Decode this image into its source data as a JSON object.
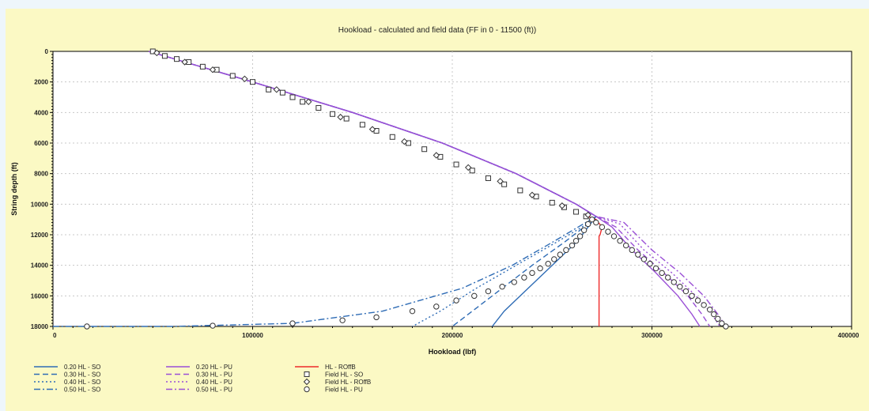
{
  "chart_data": {
    "type": "line",
    "title": "Hookload - calculated and field data (FF in 0 - 11500 (ft))",
    "xlabel": "Hookload (lbf)",
    "ylabel": "String depth (ft)",
    "xlim": [
      0,
      400000
    ],
    "ylim": [
      18000,
      0
    ],
    "xticks": [
      "0",
      "100000",
      "200000",
      "300000",
      "400000"
    ],
    "yticks": [
      "0",
      "2000",
      "4000",
      "6000",
      "8000",
      "10000",
      "12000",
      "14000",
      "16000",
      "18000"
    ],
    "grid": true,
    "legend_position": "bottom",
    "series": [
      {
        "name": "0.20 HL - SO",
        "color": "#2f6cb5",
        "dash": "solid",
        "points": [
          [
            48000,
            0
          ],
          [
            100000,
            2000
          ],
          [
            150000,
            4000
          ],
          [
            195000,
            6000
          ],
          [
            232000,
            8000
          ],
          [
            262000,
            10000
          ],
          [
            272000,
            10800
          ],
          [
            268000,
            11500
          ],
          [
            262000,
            12500
          ],
          [
            250000,
            14000
          ],
          [
            238000,
            15500
          ],
          [
            226000,
            17000
          ],
          [
            220000,
            18000
          ]
        ]
      },
      {
        "name": "0.30 HL - SO",
        "color": "#2f6cb5",
        "dash": "dash",
        "points": [
          [
            48000,
            0
          ],
          [
            100000,
            2000
          ],
          [
            150000,
            4000
          ],
          [
            195000,
            6000
          ],
          [
            232000,
            8000
          ],
          [
            262000,
            10000
          ],
          [
            272000,
            10800
          ],
          [
            266000,
            11500
          ],
          [
            256000,
            12500
          ],
          [
            240000,
            14000
          ],
          [
            225000,
            15500
          ],
          [
            210000,
            17000
          ],
          [
            200000,
            18000
          ]
        ]
      },
      {
        "name": "0.40 HL - SO",
        "color": "#2f6cb5",
        "dash": "dot",
        "points": [
          [
            48000,
            0
          ],
          [
            100000,
            2000
          ],
          [
            150000,
            4000
          ],
          [
            195000,
            6000
          ],
          [
            232000,
            8000
          ],
          [
            262000,
            10000
          ],
          [
            272000,
            10800
          ],
          [
            265000,
            11500
          ],
          [
            252000,
            12500
          ],
          [
            232000,
            14000
          ],
          [
            212000,
            15500
          ],
          [
            194000,
            17000
          ],
          [
            180000,
            18000
          ]
        ]
      },
      {
        "name": "0.50 HL - SO",
        "color": "#2f6cb5",
        "dash": "dashdot",
        "points": [
          [
            48000,
            0
          ],
          [
            100000,
            2000
          ],
          [
            150000,
            4000
          ],
          [
            195000,
            6000
          ],
          [
            232000,
            8000
          ],
          [
            262000,
            10000
          ],
          [
            272000,
            10800
          ],
          [
            263000,
            11500
          ],
          [
            250000,
            12500
          ],
          [
            230000,
            14000
          ],
          [
            205000,
            15500
          ],
          [
            165000,
            17000
          ],
          [
            120000,
            17800
          ],
          [
            60000,
            18000
          ],
          [
            0,
            18000
          ]
        ]
      },
      {
        "name": "0.20 HL - PU",
        "color": "#9a4fd6",
        "dash": "solid",
        "points": [
          [
            48000,
            0
          ],
          [
            100000,
            2000
          ],
          [
            150000,
            4000
          ],
          [
            195000,
            6000
          ],
          [
            232000,
            8000
          ],
          [
            262000,
            10000
          ],
          [
            272000,
            10800
          ],
          [
            280000,
            11500
          ],
          [
            290000,
            13000
          ],
          [
            302000,
            14500
          ],
          [
            313000,
            16000
          ],
          [
            320000,
            17200
          ],
          [
            324000,
            18000
          ]
        ]
      },
      {
        "name": "0.30 HL - PU",
        "color": "#9a4fd6",
        "dash": "dash",
        "points": [
          [
            48000,
            0
          ],
          [
            100000,
            2000
          ],
          [
            150000,
            4000
          ],
          [
            195000,
            6000
          ],
          [
            232000,
            8000
          ],
          [
            262000,
            10000
          ],
          [
            272000,
            10800
          ],
          [
            282000,
            11500
          ],
          [
            293000,
            13000
          ],
          [
            306000,
            14500
          ],
          [
            318000,
            16000
          ],
          [
            325000,
            17200
          ],
          [
            329000,
            18000
          ]
        ]
      },
      {
        "name": "0.40 HL - PU",
        "color": "#9a4fd6",
        "dash": "dot",
        "points": [
          [
            48000,
            0
          ],
          [
            100000,
            2000
          ],
          [
            150000,
            4000
          ],
          [
            195000,
            6000
          ],
          [
            232000,
            8000
          ],
          [
            262000,
            10000
          ],
          [
            272000,
            10800
          ],
          [
            284000,
            11300
          ],
          [
            296000,
            13000
          ],
          [
            310000,
            14500
          ],
          [
            322000,
            16000
          ],
          [
            330000,
            17200
          ],
          [
            334000,
            18000
          ]
        ]
      },
      {
        "name": "0.50 HL - PU",
        "color": "#9a4fd6",
        "dash": "dashdot",
        "points": [
          [
            48000,
            0
          ],
          [
            100000,
            2000
          ],
          [
            150000,
            4000
          ],
          [
            195000,
            6000
          ],
          [
            232000,
            8000
          ],
          [
            262000,
            10000
          ],
          [
            272000,
            10800
          ],
          [
            286000,
            11200
          ],
          [
            300000,
            13000
          ],
          [
            314000,
            14500
          ],
          [
            326000,
            16000
          ],
          [
            333000,
            17200
          ],
          [
            337000,
            18000
          ]
        ]
      },
      {
        "name": "HL - ROffB",
        "color": "#ee2a2a",
        "dash": "solid",
        "points": [
          [
            268000,
            10800
          ],
          [
            272000,
            11000
          ],
          [
            275000,
            11500
          ],
          [
            274000,
            12000
          ],
          [
            273500,
            12100
          ],
          [
            273500,
            18000
          ]
        ]
      }
    ],
    "field_series": [
      {
        "name": "Field HL - SO",
        "marker": "square",
        "points": [
          [
            50000,
            0
          ],
          [
            56000,
            300
          ],
          [
            62000,
            500
          ],
          [
            68000,
            700
          ],
          [
            75000,
            1000
          ],
          [
            82000,
            1200
          ],
          [
            90000,
            1600
          ],
          [
            100000,
            2000
          ],
          [
            108000,
            2500
          ],
          [
            115000,
            2700
          ],
          [
            120000,
            3000
          ],
          [
            125000,
            3300
          ],
          [
            133000,
            3700
          ],
          [
            140000,
            4100
          ],
          [
            147000,
            4400
          ],
          [
            155000,
            4800
          ],
          [
            162000,
            5200
          ],
          [
            170000,
            5600
          ],
          [
            178000,
            6000
          ],
          [
            186000,
            6400
          ],
          [
            194000,
            6900
          ],
          [
            202000,
            7400
          ],
          [
            210000,
            7800
          ],
          [
            218000,
            8300
          ],
          [
            226000,
            8700
          ],
          [
            234000,
            9100
          ],
          [
            242000,
            9500
          ],
          [
            250000,
            9900
          ],
          [
            256000,
            10200
          ],
          [
            262000,
            10500
          ],
          [
            267000,
            10800
          ]
        ]
      },
      {
        "name": "Field HL - ROffB",
        "marker": "diamond",
        "points": [
          [
            52000,
            100
          ],
          [
            66000,
            700
          ],
          [
            80000,
            1200
          ],
          [
            96000,
            1800
          ],
          [
            112000,
            2500
          ],
          [
            128000,
            3300
          ],
          [
            144000,
            4300
          ],
          [
            160000,
            5100
          ],
          [
            176000,
            5900
          ],
          [
            192000,
            6800
          ],
          [
            208000,
            7600
          ],
          [
            224000,
            8500
          ],
          [
            240000,
            9400
          ],
          [
            255000,
            10100
          ],
          [
            268000,
            10700
          ]
        ]
      },
      {
        "name": "Field HL - PU",
        "marker": "circle",
        "points": [
          [
            270000,
            11000
          ],
          [
            272000,
            11200
          ],
          [
            275000,
            11500
          ],
          [
            278000,
            11800
          ],
          [
            281000,
            12100
          ],
          [
            284000,
            12400
          ],
          [
            287000,
            12700
          ],
          [
            290000,
            13000
          ],
          [
            293000,
            13300
          ],
          [
            296000,
            13600
          ],
          [
            299000,
            13900
          ],
          [
            302000,
            14200
          ],
          [
            305000,
            14500
          ],
          [
            308000,
            14800
          ],
          [
            311000,
            15100
          ],
          [
            314000,
            15400
          ],
          [
            317000,
            15700
          ],
          [
            320000,
            16000
          ],
          [
            323000,
            16300
          ],
          [
            326000,
            16600
          ],
          [
            329000,
            16900
          ],
          [
            331000,
            17200
          ],
          [
            333000,
            17500
          ],
          [
            335000,
            17800
          ],
          [
            337000,
            18000
          ],
          [
            268000,
            11300
          ],
          [
            266000,
            11700
          ],
          [
            264000,
            12100
          ],
          [
            262000,
            12400
          ],
          [
            260000,
            12700
          ],
          [
            257000,
            13000
          ],
          [
            254000,
            13300
          ],
          [
            251000,
            13600
          ],
          [
            248000,
            13900
          ],
          [
            244000,
            14200
          ],
          [
            240000,
            14500
          ],
          [
            236000,
            14800
          ],
          [
            231000,
            15100
          ],
          [
            225000,
            15400
          ],
          [
            218000,
            15700
          ],
          [
            211000,
            16000
          ],
          [
            202000,
            16300
          ],
          [
            192000,
            16700
          ],
          [
            180000,
            17000
          ],
          [
            162000,
            17400
          ],
          [
            145000,
            17600
          ],
          [
            120000,
            17800
          ],
          [
            80000,
            17950
          ],
          [
            17000,
            18000
          ]
        ]
      }
    ],
    "legend": [
      {
        "label": "0.20 HL - SO",
        "kind": "line",
        "color": "#2f6cb5",
        "dash": "solid"
      },
      {
        "label": "0.30 HL - SO",
        "kind": "line",
        "color": "#2f6cb5",
        "dash": "dash"
      },
      {
        "label": "0.40 HL - SO",
        "kind": "line",
        "color": "#2f6cb5",
        "dash": "dot"
      },
      {
        "label": "0.50 HL - SO",
        "kind": "line",
        "color": "#2f6cb5",
        "dash": "dashdot"
      },
      {
        "label": "0.20 HL - PU",
        "kind": "line",
        "color": "#9a4fd6",
        "dash": "solid"
      },
      {
        "label": "0.30 HL - PU",
        "kind": "line",
        "color": "#9a4fd6",
        "dash": "dash"
      },
      {
        "label": "0.40 HL - PU",
        "kind": "line",
        "color": "#9a4fd6",
        "dash": "dot"
      },
      {
        "label": "0.50 HL - PU",
        "kind": "line",
        "color": "#9a4fd6",
        "dash": "dashdot"
      },
      {
        "label": "HL - ROffB",
        "kind": "line",
        "color": "#ee2a2a",
        "dash": "solid"
      },
      {
        "label": "Field HL - SO",
        "kind": "marker",
        "marker": "square"
      },
      {
        "label": "Field HL - ROffB",
        "kind": "marker",
        "marker": "diamond"
      },
      {
        "label": "Field HL - PU",
        "kind": "marker",
        "marker": "circle"
      }
    ]
  }
}
